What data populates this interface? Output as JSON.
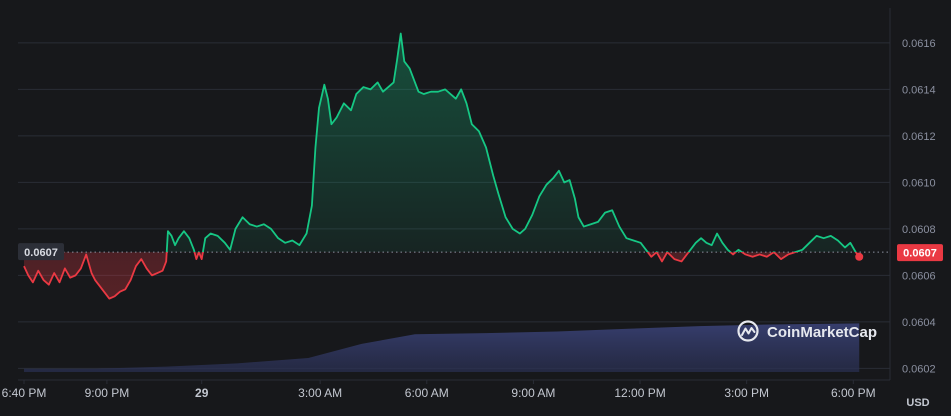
{
  "chart_data": {
    "type": "line",
    "baseline": 0.0607,
    "ylim": [
      0.06015,
      0.06175
    ],
    "y_ticks": [
      "0.0602",
      "0.0604",
      "0.0606",
      "0.0608",
      "0.0610",
      "0.0612",
      "0.0614",
      "0.0616"
    ],
    "x_ticks": [
      {
        "label": "6:40 PM",
        "hours": 0,
        "bold": false
      },
      {
        "label": "9:00 PM",
        "hours": 2.333,
        "bold": false
      },
      {
        "label": "29",
        "hours": 5,
        "bold": true
      },
      {
        "label": "3:00 AM",
        "hours": 8.333,
        "bold": false
      },
      {
        "label": "6:00 AM",
        "hours": 11.333,
        "bold": false
      },
      {
        "label": "9:00 AM",
        "hours": 14.333,
        "bold": false
      },
      {
        "label": "12:00 PM",
        "hours": 17.333,
        "bold": false
      },
      {
        "label": "3:00 PM",
        "hours": 20.333,
        "bold": false
      },
      {
        "label": "6:00 PM",
        "hours": 23.333,
        "bold": false
      }
    ],
    "xlim_hours": [
      0,
      24
    ],
    "currency_label": "USD",
    "left_price_label": "0.0607",
    "right_price_label": "0.0607",
    "colors": {
      "up": "#16c784",
      "down": "#ea3943",
      "grid": "#2a2d36",
      "volume": "#343a63"
    },
    "series": [
      {
        "values": [
          [
            0.0,
            0.06064
          ],
          [
            0.12,
            0.0606
          ],
          [
            0.25,
            0.06057
          ],
          [
            0.4,
            0.06062
          ],
          [
            0.55,
            0.06058
          ],
          [
            0.7,
            0.06056
          ],
          [
            0.85,
            0.06061
          ],
          [
            1.0,
            0.06057
          ],
          [
            1.15,
            0.06063
          ],
          [
            1.3,
            0.06059
          ],
          [
            1.45,
            0.0606
          ],
          [
            1.6,
            0.06063
          ],
          [
            1.75,
            0.06069
          ],
          [
            1.9,
            0.06061
          ],
          [
            2.0,
            0.06058
          ],
          [
            2.1,
            0.06056
          ],
          [
            2.2,
            0.06054
          ],
          [
            2.3,
            0.06052
          ],
          [
            2.4,
            0.0605
          ],
          [
            2.55,
            0.06051
          ],
          [
            2.7,
            0.06053
          ],
          [
            2.85,
            0.06054
          ],
          [
            3.0,
            0.06058
          ],
          [
            3.15,
            0.06064
          ],
          [
            3.3,
            0.06067
          ],
          [
            3.45,
            0.06063
          ],
          [
            3.6,
            0.0606
          ],
          [
            3.75,
            0.06061
          ],
          [
            3.9,
            0.06062
          ],
          [
            4.0,
            0.06066
          ],
          [
            4.05,
            0.06079
          ],
          [
            4.15,
            0.06077
          ],
          [
            4.25,
            0.06073
          ],
          [
            4.35,
            0.06076
          ],
          [
            4.5,
            0.06079
          ],
          [
            4.65,
            0.06076
          ],
          [
            4.78,
            0.06071
          ],
          [
            4.85,
            0.06067
          ],
          [
            4.92,
            0.0607
          ],
          [
            5.0,
            0.06067
          ],
          [
            5.1,
            0.06076
          ],
          [
            5.25,
            0.06078
          ],
          [
            5.45,
            0.06077
          ],
          [
            5.65,
            0.06074
          ],
          [
            5.8,
            0.06071
          ],
          [
            5.95,
            0.0608
          ],
          [
            6.15,
            0.06085
          ],
          [
            6.35,
            0.06082
          ],
          [
            6.55,
            0.06081
          ],
          [
            6.75,
            0.06082
          ],
          [
            6.95,
            0.0608
          ],
          [
            7.15,
            0.06076
          ],
          [
            7.35,
            0.06074
          ],
          [
            7.55,
            0.06075
          ],
          [
            7.75,
            0.06073
          ],
          [
            7.95,
            0.06078
          ],
          [
            8.1,
            0.0609
          ],
          [
            8.2,
            0.06115
          ],
          [
            8.3,
            0.06132
          ],
          [
            8.45,
            0.06142
          ],
          [
            8.55,
            0.06136
          ],
          [
            8.65,
            0.06125
          ],
          [
            8.8,
            0.06128
          ],
          [
            9.0,
            0.06134
          ],
          [
            9.2,
            0.06131
          ],
          [
            9.35,
            0.06138
          ],
          [
            9.55,
            0.06141
          ],
          [
            9.75,
            0.0614
          ],
          [
            9.95,
            0.06143
          ],
          [
            10.1,
            0.06139
          ],
          [
            10.25,
            0.06141
          ],
          [
            10.4,
            0.06143
          ],
          [
            10.5,
            0.06153
          ],
          [
            10.6,
            0.06164
          ],
          [
            10.7,
            0.06152
          ],
          [
            10.85,
            0.06149
          ],
          [
            11.0,
            0.06143
          ],
          [
            11.1,
            0.06139
          ],
          [
            11.25,
            0.06138
          ],
          [
            11.45,
            0.06139
          ],
          [
            11.65,
            0.06139
          ],
          [
            11.85,
            0.0614
          ],
          [
            12.0,
            0.06138
          ],
          [
            12.15,
            0.06136
          ],
          [
            12.3,
            0.0614
          ],
          [
            12.45,
            0.06134
          ],
          [
            12.6,
            0.06125
          ],
          [
            12.8,
            0.06122
          ],
          [
            13.0,
            0.06115
          ],
          [
            13.2,
            0.06103
          ],
          [
            13.35,
            0.06095
          ],
          [
            13.55,
            0.06085
          ],
          [
            13.75,
            0.0608
          ],
          [
            13.95,
            0.06078
          ],
          [
            14.1,
            0.0608
          ],
          [
            14.3,
            0.06086
          ],
          [
            14.5,
            0.06094
          ],
          [
            14.7,
            0.06099
          ],
          [
            14.9,
            0.06102
          ],
          [
            15.05,
            0.06105
          ],
          [
            15.2,
            0.061
          ],
          [
            15.35,
            0.06101
          ],
          [
            15.5,
            0.06093
          ],
          [
            15.6,
            0.06085
          ],
          [
            15.75,
            0.06081
          ],
          [
            15.95,
            0.06082
          ],
          [
            16.15,
            0.06083
          ],
          [
            16.35,
            0.06087
          ],
          [
            16.55,
            0.06088
          ],
          [
            16.75,
            0.06081
          ],
          [
            16.95,
            0.06076
          ],
          [
            17.15,
            0.06075
          ],
          [
            17.35,
            0.06074
          ],
          [
            17.5,
            0.06071
          ],
          [
            17.65,
            0.06068
          ],
          [
            17.8,
            0.0607
          ],
          [
            17.95,
            0.06066
          ],
          [
            18.1,
            0.0607
          ],
          [
            18.3,
            0.06067
          ],
          [
            18.5,
            0.06066
          ],
          [
            18.7,
            0.0607
          ],
          [
            18.9,
            0.06074
          ],
          [
            19.05,
            0.06076
          ],
          [
            19.2,
            0.06074
          ],
          [
            19.35,
            0.06073
          ],
          [
            19.5,
            0.06078
          ],
          [
            19.65,
            0.06074
          ],
          [
            19.8,
            0.06071
          ],
          [
            19.95,
            0.06069
          ],
          [
            20.1,
            0.06071
          ],
          [
            20.3,
            0.06069
          ],
          [
            20.5,
            0.06068
          ],
          [
            20.7,
            0.06069
          ],
          [
            20.9,
            0.06068
          ],
          [
            21.1,
            0.0607
          ],
          [
            21.3,
            0.06067
          ],
          [
            21.5,
            0.06069
          ],
          [
            21.7,
            0.0607
          ],
          [
            21.9,
            0.06071
          ],
          [
            22.1,
            0.06074
          ],
          [
            22.3,
            0.06077
          ],
          [
            22.5,
            0.06076
          ],
          [
            22.7,
            0.06077
          ],
          [
            22.9,
            0.06075
          ],
          [
            23.1,
            0.06072
          ],
          [
            23.25,
            0.06074
          ],
          [
            23.4,
            0.0607
          ],
          [
            23.5,
            0.06068
          ]
        ]
      }
    ],
    "volume": [
      [
        0,
        0.06
      ],
      [
        2,
        0.06
      ],
      [
        4,
        0.1
      ],
      [
        6,
        0.16
      ],
      [
        8,
        0.26
      ],
      [
        9.5,
        0.52
      ],
      [
        11,
        0.7
      ],
      [
        13,
        0.72
      ],
      [
        15,
        0.75
      ],
      [
        17,
        0.8
      ],
      [
        19,
        0.85
      ],
      [
        21,
        0.88
      ],
      [
        23.5,
        0.9
      ]
    ]
  },
  "watermark": {
    "text": "CoinMarketCap",
    "icon": "coinmarketcap-logo-icon"
  }
}
